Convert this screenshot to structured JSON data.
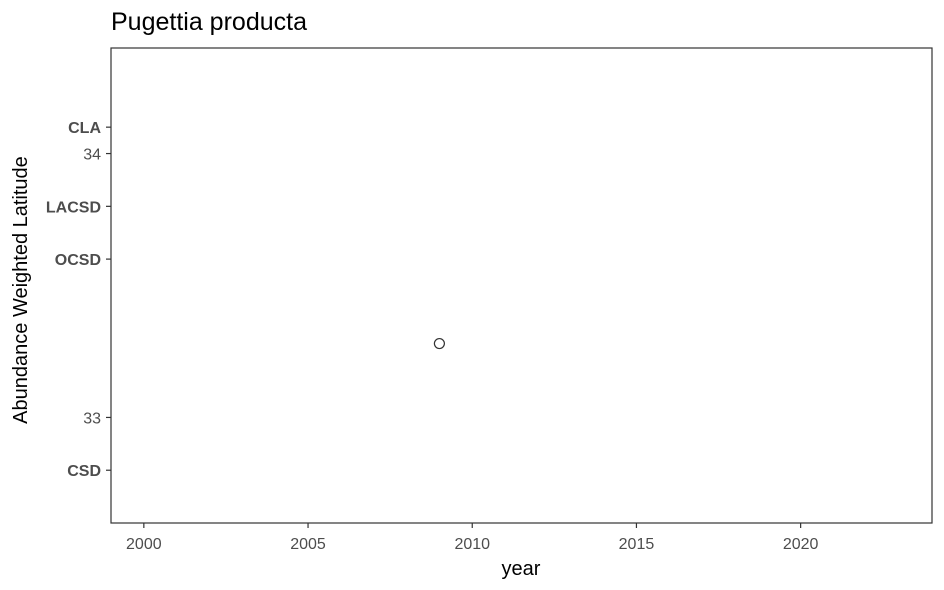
{
  "chart_data": {
    "type": "scatter",
    "title": "Pugettia producta",
    "xlabel": "year",
    "ylabel": "Abundance Weighted Latitude",
    "xlim": [
      1999,
      2024
    ],
    "ylim": [
      32.6,
      34.4
    ],
    "x_ticks": [
      2000,
      2005,
      2010,
      2015,
      2020
    ],
    "y_ticks": [
      33,
      34
    ],
    "reference_labels": [
      {
        "label": "CLA",
        "y": 34.1
      },
      {
        "label": "LACSD",
        "y": 33.8
      },
      {
        "label": "OCSD",
        "y": 33.6
      },
      {
        "label": "CSD",
        "y": 32.8
      }
    ],
    "points": [
      {
        "x": 2009,
        "y": 33.28
      }
    ],
    "marker": "open-circle",
    "grid": false,
    "colors": {
      "panel_border": "#333333",
      "tick": "#333333",
      "point_stroke": "#333333",
      "text": "#4d4d4d"
    }
  }
}
